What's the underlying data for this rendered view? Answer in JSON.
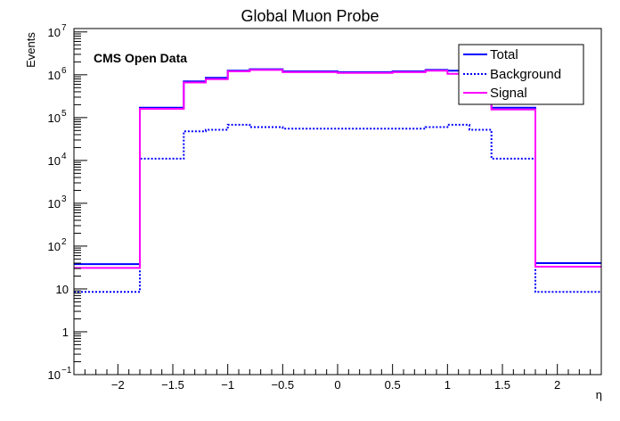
{
  "chart_data": {
    "type": "line",
    "style": "step-histogram",
    "title": "Global Muon Probe",
    "xlabel": "η",
    "ylabel": "Events",
    "annotation": "CMS Open Data",
    "xlim": [
      -2.4,
      2.4
    ],
    "ylim": [
      0.1,
      12000000
    ],
    "yscale": "log",
    "grid": false,
    "legend_position": "top-right",
    "x_ticks": [
      {
        "value": -2,
        "label": "−2"
      },
      {
        "value": -1.5,
        "label": "−1.5"
      },
      {
        "value": -1,
        "label": "−1"
      },
      {
        "value": -0.5,
        "label": "−0.5"
      },
      {
        "value": 0,
        "label": "0"
      },
      {
        "value": 0.5,
        "label": "0.5"
      },
      {
        "value": 1,
        "label": "1"
      },
      {
        "value": 1.5,
        "label": "1.5"
      },
      {
        "value": 2,
        "label": "2"
      }
    ],
    "y_ticks": [
      {
        "value": 0.1,
        "base": "10",
        "exp": "−1"
      },
      {
        "value": 1,
        "base": "1",
        "exp": ""
      },
      {
        "value": 10,
        "base": "10",
        "exp": ""
      },
      {
        "value": 100,
        "base": "10",
        "exp": "2"
      },
      {
        "value": 1000,
        "base": "10",
        "exp": "3"
      },
      {
        "value": 10000,
        "base": "10",
        "exp": "4"
      },
      {
        "value": 100000,
        "base": "10",
        "exp": "5"
      },
      {
        "value": 1000000,
        "base": "10",
        "exp": "6"
      },
      {
        "value": 10000000,
        "base": "10",
        "exp": "7"
      }
    ],
    "bin_edges": [
      -2.4,
      -1.8,
      -1.4,
      -1.2,
      -1.0,
      -0.8,
      -0.5,
      0.0,
      0.5,
      0.8,
      1.0,
      1.2,
      1.4,
      1.8,
      2.4
    ],
    "series": [
      {
        "name": "Total",
        "color": "#0000ff",
        "dash": "solid",
        "values": [
          38,
          170000,
          700000,
          850000,
          1250000,
          1350000,
          1200000,
          1150000,
          1200000,
          1300000,
          1250000,
          850000,
          170000,
          40
        ]
      },
      {
        "name": "Background",
        "color": "#0000ff",
        "dash": "dotted",
        "values": [
          8.5,
          11000,
          48000,
          52000,
          68000,
          60000,
          55000,
          55000,
          55000,
          60000,
          68000,
          52000,
          11000,
          8.5
        ]
      },
      {
        "name": "Signal",
        "color": "#ff00ff",
        "dash": "solid",
        "values": [
          31,
          160000,
          660000,
          790000,
          1200000,
          1300000,
          1150000,
          1100000,
          1150000,
          1250000,
          1050000,
          790000,
          155000,
          33
        ]
      }
    ]
  }
}
